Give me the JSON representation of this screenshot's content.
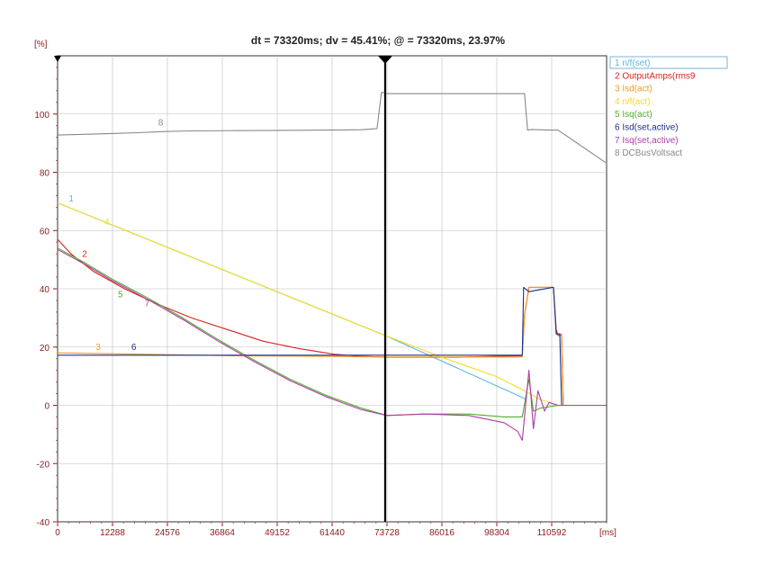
{
  "chart_data": {
    "type": "line",
    "title": "dt = 73320ms; dv = 45.41%; @ = 73320ms, 23.97%",
    "ylabel": "[%]",
    "xlabel": "[ms]",
    "xlim": [
      0,
      122880
    ],
    "ylim": [
      -40,
      120
    ],
    "x_ticks": [
      0,
      12288,
      24576,
      36864,
      49152,
      61440,
      73728,
      86016,
      98304,
      110592
    ],
    "y_ticks": [
      -40,
      -20,
      0,
      20,
      40,
      60,
      80,
      100
    ],
    "grid": true,
    "legend_position": "top-right",
    "cursor_x": 73320,
    "series": [
      {
        "index": "1",
        "name": "n/f(set)",
        "color": "#5fb4e0",
        "label_at": [
          2500,
          70
        ],
        "x": [
          0,
          73320,
          105000
        ],
        "y": [
          69.5,
          23.97,
          2
        ]
      },
      {
        "index": "2",
        "name": "OutputAmps(rms9",
        "color": "#dd1f1f",
        "label_at": [
          5500,
          51
        ],
        "x": [
          0,
          3000,
          8000,
          15000,
          22000,
          30000,
          38000,
          46000,
          54000,
          62000,
          68000,
          73728,
          80000,
          90000,
          98000,
          104000,
          104500,
          105500,
          110000,
          111000,
          111600,
          112000,
          112800,
          113200,
          123000
        ],
        "y": [
          57,
          52,
          46,
          40,
          35,
          30,
          26,
          22,
          19.5,
          17.5,
          16.8,
          16.5,
          16.5,
          16.5,
          16.8,
          17,
          31,
          40.5,
          40.5,
          40.5,
          26,
          24,
          24,
          0,
          0
        ]
      },
      {
        "index": "3",
        "name": "Isd(act)",
        "color": "#f39a1e",
        "label_at": [
          8500,
          19
        ],
        "x": [
          0,
          20000,
          40000,
          60000,
          73728,
          90000,
          104000,
          104500,
          105500,
          111000,
          111600,
          112800,
          113200,
          123000
        ],
        "y": [
          18,
          17.5,
          17,
          16.8,
          16.6,
          16.6,
          16.6,
          31,
          40.5,
          40.5,
          24.5,
          24.5,
          0,
          0
        ]
      },
      {
        "index": "4",
        "name": "n/f(act)",
        "color": "#f5dc1e",
        "label_at": [
          10500,
          62
        ],
        "x": [
          0,
          73320,
          86000,
          98000,
          104500,
          108000,
          112000,
          123000
        ],
        "y": [
          69.5,
          23.97,
          16.5,
          10,
          5,
          2,
          0,
          0
        ]
      },
      {
        "index": "5",
        "name": "Isq(act)",
        "color": "#4caf2a",
        "label_at": [
          13500,
          37
        ],
        "x": [
          0,
          6000,
          12000,
          20000,
          28000,
          36000,
          44000,
          52000,
          60000,
          68000,
          73728,
          82000,
          92000,
          100000,
          104000,
          105500,
          106500,
          108000,
          112000,
          123000
        ],
        "y": [
          54,
          49,
          43.5,
          37,
          30,
          22.5,
          15.5,
          9,
          3.5,
          -1,
          -3.5,
          -3,
          -3,
          -4,
          -4,
          9,
          -2,
          -1,
          0,
          0
        ]
      },
      {
        "index": "6",
        "name": "Isd(set,active)",
        "color": "#1c2f8c",
        "label_at": [
          16500,
          19
        ],
        "x": [
          0,
          20000,
          40000,
          60000,
          73728,
          90000,
          104000,
          104300,
          105500,
          110800,
          111000,
          111600,
          112400,
          112800,
          123000
        ],
        "y": [
          17.2,
          17.2,
          17.2,
          17.2,
          17.2,
          17.2,
          17.2,
          40.5,
          39,
          40.5,
          40.5,
          24.5,
          24.5,
          0,
          0
        ]
      },
      {
        "index": "7",
        "name": "Isq(set,active)",
        "color": "#b03caa",
        "label_at": [
          19500,
          34
        ],
        "x": [
          0,
          6000,
          12000,
          20000,
          28000,
          36000,
          44000,
          52000,
          60000,
          68000,
          73728,
          82000,
          92000,
          100000,
          103000,
          104000,
          105500,
          106500,
          107500,
          109000,
          110000,
          112000,
          123000
        ],
        "y": [
          53.5,
          48.5,
          43,
          36.5,
          29.5,
          22,
          15,
          8.5,
          3,
          -1.5,
          -3.5,
          -3,
          -3.5,
          -6,
          -9,
          -12,
          12,
          -8,
          5,
          -2,
          1,
          0,
          0
        ]
      },
      {
        "index": "8",
        "name": "DCBusVoltsact",
        "color": "#888888",
        "label_at": [
          22500,
          96
        ],
        "x": [
          0,
          5000,
          12000,
          18000,
          24000,
          30000,
          40000,
          50000,
          60000,
          68000,
          71500,
          72500,
          73728,
          90000,
          104500,
          105200,
          106000,
          110000,
          112000,
          123000
        ],
        "y": [
          92.8,
          93,
          93.3,
          93.6,
          94,
          94.2,
          94.3,
          94.4,
          94.5,
          94.6,
          95,
          107.5,
          107,
          107,
          107,
          94.5,
          94.7,
          94.5,
          94.5,
          83
        ]
      }
    ]
  }
}
